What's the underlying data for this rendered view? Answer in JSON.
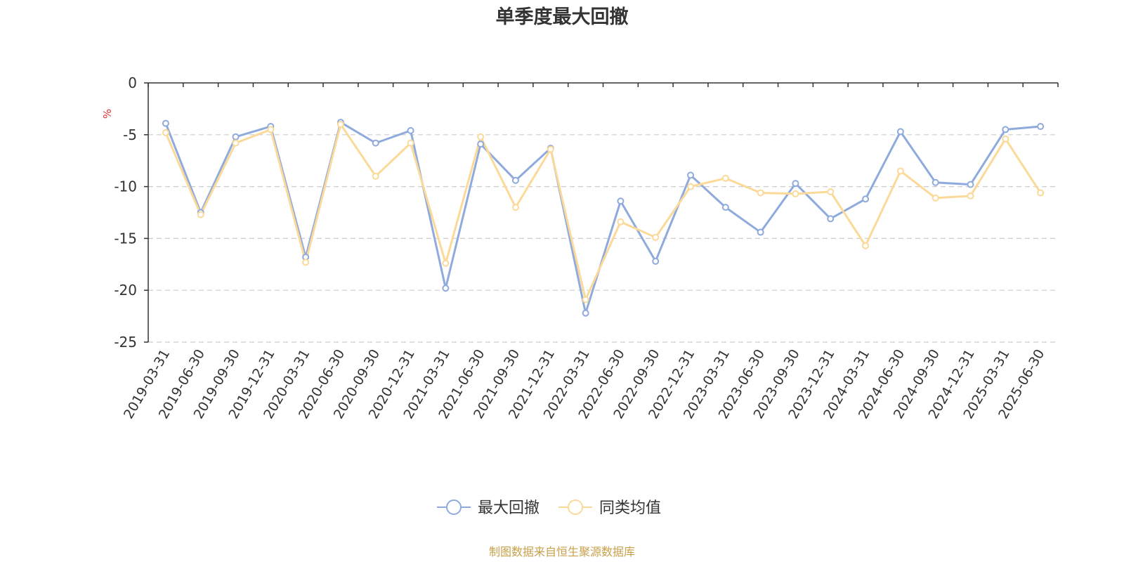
{
  "chart_data": {
    "type": "line",
    "title": "单季度最大回撤",
    "ylabel": "%",
    "ylim": [
      -25,
      0
    ],
    "yticks": [
      0,
      -5,
      -10,
      -15,
      -20,
      -25
    ],
    "grid": true,
    "legend_position": "bottom-center",
    "categories": [
      "2019-03-31",
      "2019-06-30",
      "2019-09-30",
      "2019-12-31",
      "2020-03-31",
      "2020-06-30",
      "2020-09-30",
      "2020-12-31",
      "2021-03-31",
      "2021-06-30",
      "2021-09-30",
      "2021-12-31",
      "2022-03-31",
      "2022-06-30",
      "2022-09-30",
      "2022-12-31",
      "2023-03-31",
      "2023-06-30",
      "2023-09-30",
      "2023-12-31",
      "2024-03-31",
      "2024-06-30",
      "2024-09-30",
      "2024-12-31",
      "2025-03-31",
      "2025-06-30"
    ],
    "series": [
      {
        "name": "最大回撤",
        "color": "#8faadc",
        "values": [
          -3.9,
          -12.5,
          -5.2,
          -4.2,
          -16.8,
          -3.8,
          -5.8,
          -4.6,
          -19.8,
          -5.9,
          -9.4,
          -6.3,
          -22.2,
          -11.4,
          -17.2,
          -8.9,
          -12.0,
          -14.4,
          -9.7,
          -13.1,
          -11.2,
          -4.7,
          -9.6,
          -9.8,
          -4.5,
          -4.2
        ]
      },
      {
        "name": "同类均值",
        "color": "#fbd999",
        "values": [
          -4.8,
          -12.7,
          -5.8,
          -4.5,
          -17.3,
          -4.0,
          -9.0,
          -5.8,
          -17.4,
          -5.2,
          -12.0,
          -6.4,
          -20.9,
          -13.4,
          -14.9,
          -10.0,
          -9.2,
          -10.6,
          -10.7,
          -10.5,
          -15.7,
          -8.5,
          -11.1,
          -10.9,
          -5.4,
          -10.6
        ]
      }
    ],
    "source": "制图数据来自恒生聚源数据库"
  }
}
